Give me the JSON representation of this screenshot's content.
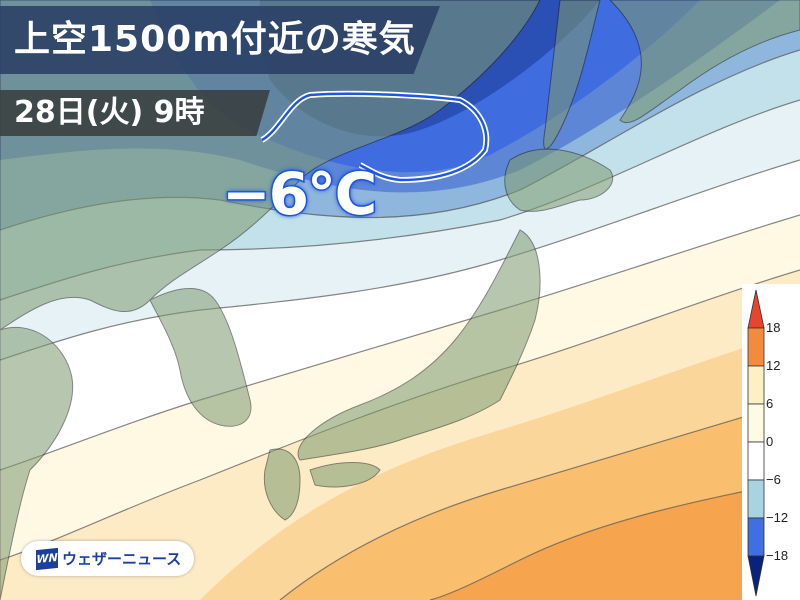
{
  "header": {
    "title": "上空1500m付近の寒気",
    "datetime": "28日(火) 9時"
  },
  "annotation": {
    "temperature": "−6℃",
    "contour_color": "#1f57e0"
  },
  "legend": {
    "labels": [
      "18",
      "12",
      "6",
      "0",
      "−6",
      "−12",
      "−18"
    ],
    "colors": {
      "above_18": "#e8452c",
      "12_to_18": "#f28c3c",
      "6_to_12": "#fdf1c4",
      "0_to_6": "#fffbe2",
      "minus6_to_0": "#ffffff",
      "minus12_to_minus6": "#a9d3df",
      "minus18_to_minus12": "#3f6fe0",
      "below_minus18": "#0a237a"
    }
  },
  "branding": {
    "logo_mark": "WN",
    "name": "ウェザーニュース"
  }
}
